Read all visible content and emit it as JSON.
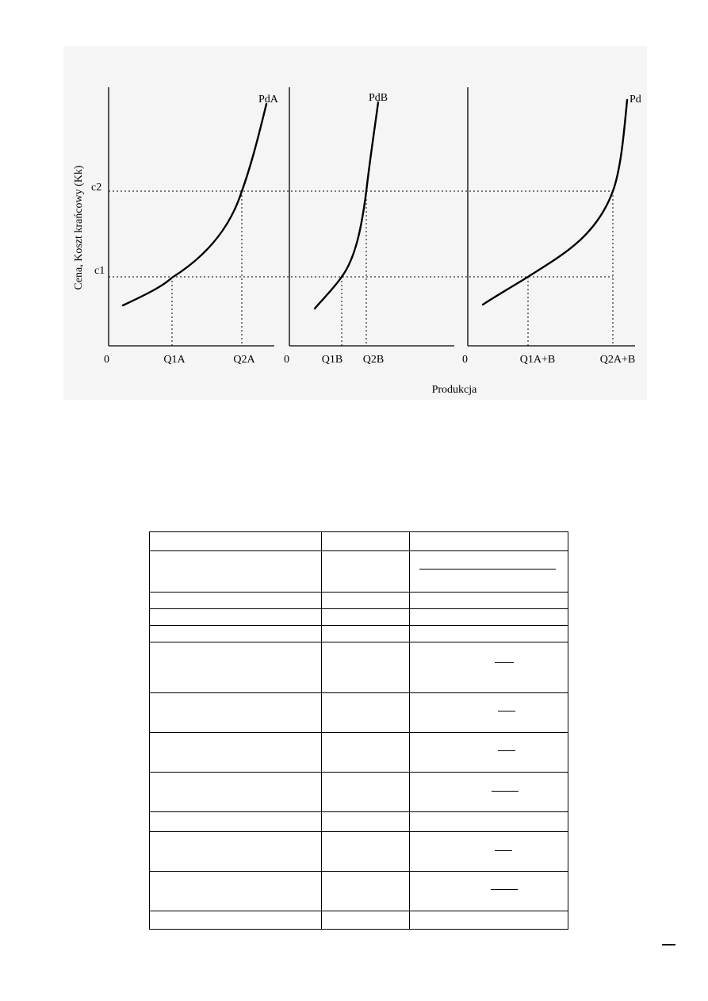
{
  "figure": {
    "y_axis_label": "Cena, Koszt krańcowy (Kk)",
    "x_axis_label": "Produkcja",
    "price_levels": [
      "c1",
      "c2"
    ],
    "panels": [
      {
        "curve_label": "PdA",
        "origin_label": "0",
        "x_tick_labels": [
          "Q1A",
          "Q2A"
        ]
      },
      {
        "curve_label": "PdB",
        "origin_label": "0",
        "x_tick_labels": [
          "Q1B",
          "Q2B"
        ]
      },
      {
        "curve_label": "Pd",
        "origin_label": "0",
        "x_tick_labels": [
          "Q1A+B",
          "Q2A+B"
        ]
      }
    ],
    "line_color": "#000000",
    "background_color": "#f5f5f5"
  },
  "table": {
    "columns": 3,
    "rows": [
      {
        "cells": [
          "",
          "",
          ""
        ]
      },
      {
        "cells": [
          "",
          "",
          ""
        ],
        "fraction_bar": "wide"
      },
      {
        "cells": [
          "",
          "",
          ""
        ]
      },
      {
        "cells": [
          "",
          "",
          ""
        ]
      },
      {
        "cells": [
          "",
          "",
          ""
        ]
      },
      {
        "cells": [
          "",
          "",
          ""
        ],
        "fraction_bar": "short"
      },
      {
        "cells": [
          "",
          "",
          ""
        ],
        "fraction_bar": "short"
      },
      {
        "cells": [
          "",
          "",
          ""
        ],
        "fraction_bar": "short"
      },
      {
        "cells": [
          "",
          "",
          ""
        ],
        "fraction_bar": "short"
      },
      {
        "cells": [
          "",
          "",
          ""
        ]
      },
      {
        "cells": [
          "",
          "",
          ""
        ],
        "fraction_bar": "short"
      },
      {
        "cells": [
          "",
          "",
          ""
        ],
        "fraction_bar": "short"
      },
      {
        "cells": [
          "",
          "",
          ""
        ]
      }
    ]
  }
}
